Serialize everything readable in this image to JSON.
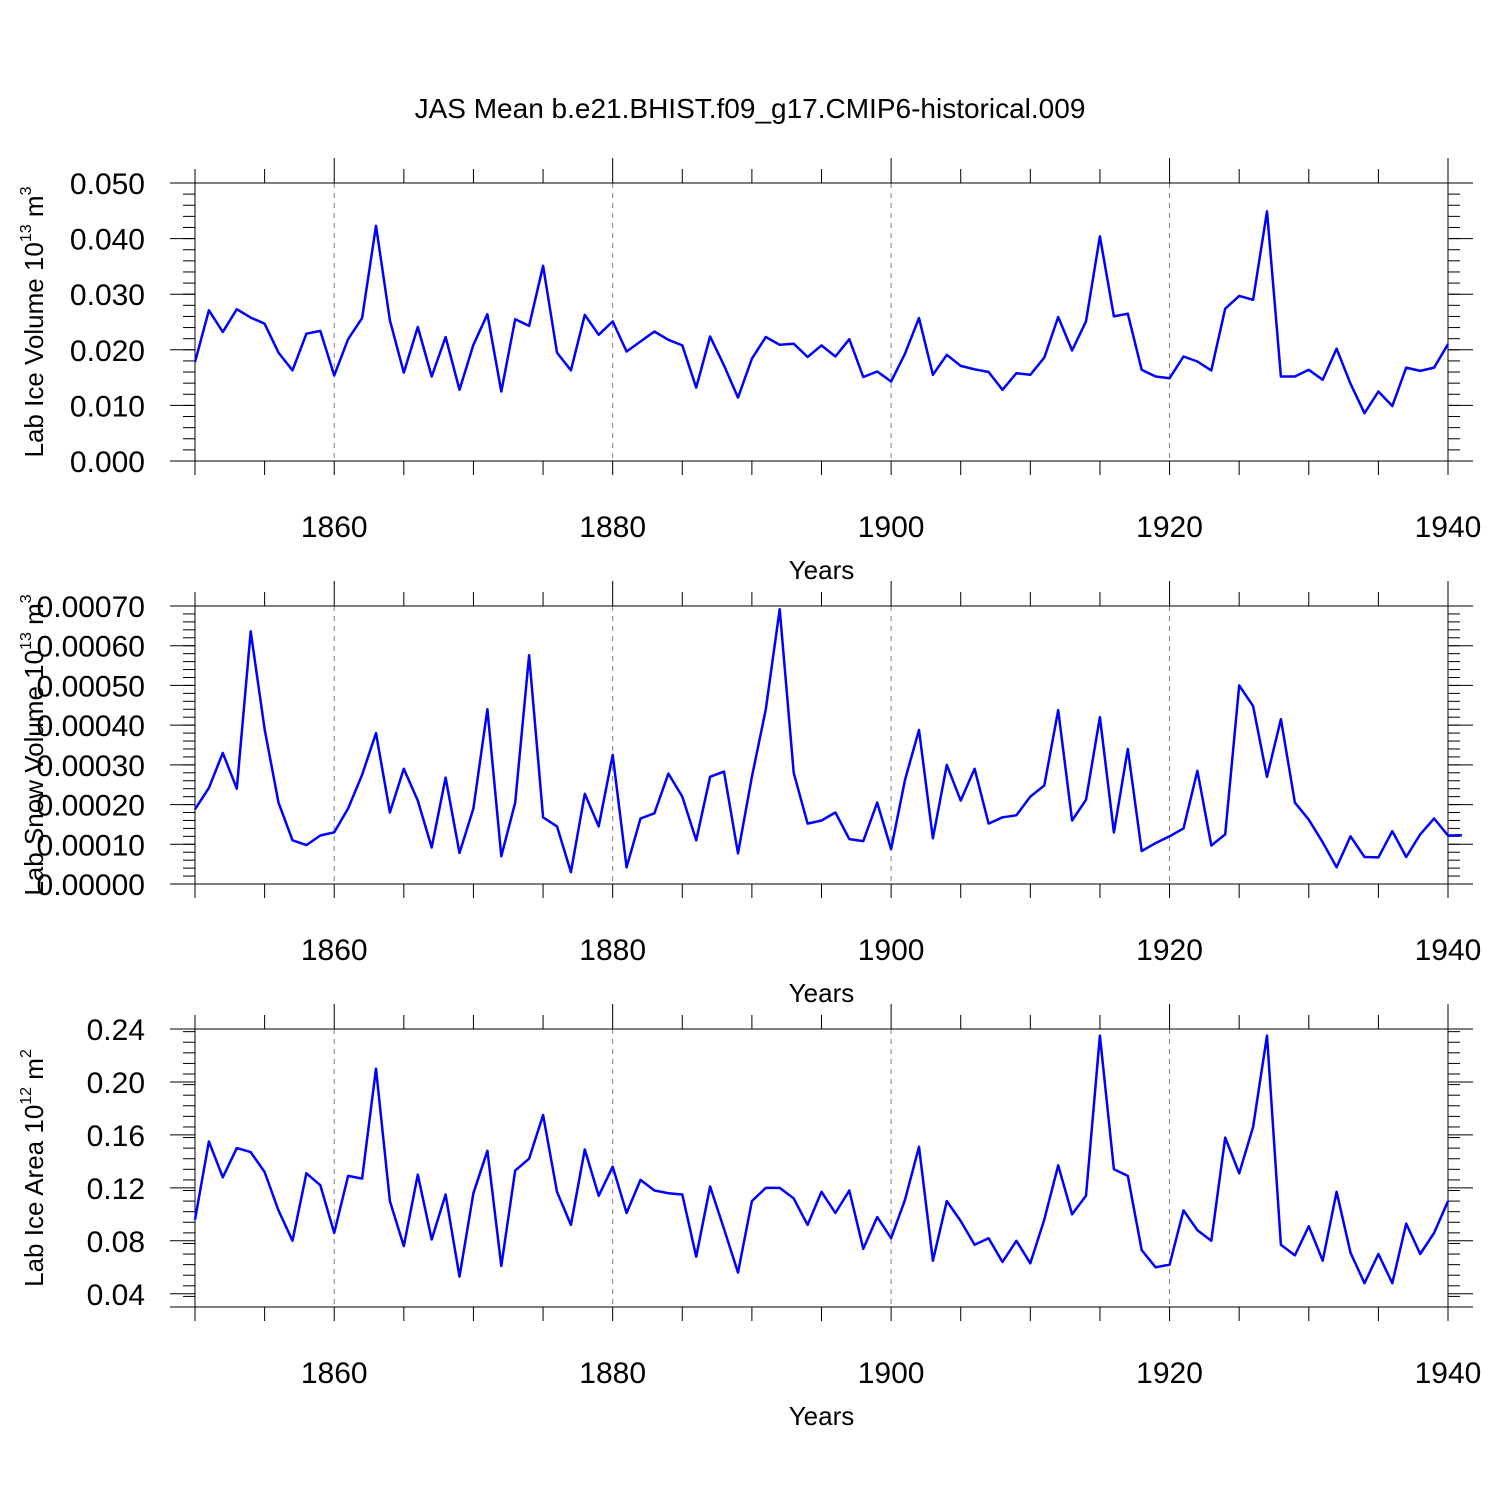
{
  "title": "JAS Mean b.e21.BHIST.f09_g17.CMIP6-historical.009",
  "colors": {
    "series": "#0000ff",
    "axis": "#000000",
    "grid": "#808080"
  },
  "chart_data": [
    {
      "type": "line",
      "ylabel_parts": [
        "Lab Ice Volume 10",
        "13",
        " m",
        "3"
      ],
      "xlabel": "Years",
      "xlim": [
        1850,
        1940
      ],
      "ylim": [
        0.0,
        0.05
      ],
      "x_major_ticks": [
        1860,
        1880,
        1900,
        1920,
        1940
      ],
      "x_grid": [
        1860,
        1880,
        1900,
        1920
      ],
      "y_ticks": [
        0.0,
        0.01,
        0.02,
        0.03,
        0.04,
        0.05
      ],
      "y_tick_labels": [
        "0.000",
        "0.010",
        "0.020",
        "0.030",
        "0.040",
        "0.050"
      ],
      "x_start": 1850,
      "values": [
        0.0178,
        0.0271,
        0.0232,
        0.0273,
        0.0258,
        0.0247,
        0.0195,
        0.0163,
        0.0229,
        0.0234,
        0.0154,
        0.0219,
        0.0257,
        0.0423,
        0.0253,
        0.0159,
        0.0241,
        0.0152,
        0.0223,
        0.0128,
        0.0209,
        0.0264,
        0.0125,
        0.0255,
        0.0243,
        0.0351,
        0.0195,
        0.0163,
        0.0263,
        0.0227,
        0.0251,
        0.0197,
        0.0215,
        0.0233,
        0.0218,
        0.0208,
        0.0132,
        0.0224,
        0.0172,
        0.0114,
        0.0184,
        0.0223,
        0.0209,
        0.0211,
        0.0187,
        0.0208,
        0.0188,
        0.0219,
        0.0151,
        0.0161,
        0.0143,
        0.0193,
        0.0257,
        0.0155,
        0.0191,
        0.0171,
        0.0165,
        0.016,
        0.0128,
        0.0158,
        0.0155,
        0.0186,
        0.0259,
        0.0199,
        0.0251,
        0.0404,
        0.026,
        0.0265,
        0.0164,
        0.0152,
        0.0149,
        0.0188,
        0.0179,
        0.0163,
        0.0274,
        0.0297,
        0.029,
        0.0449,
        0.0152,
        0.0152,
        0.0164,
        0.0146,
        0.0202,
        0.0139,
        0.0086,
        0.0125,
        0.0099,
        0.0168,
        0.0162,
        0.0168,
        0.021
      ]
    },
    {
      "type": "line",
      "ylabel_parts": [
        "Lab Snow Volume 10",
        "13",
        " m",
        "3"
      ],
      "xlabel": "Years",
      "xlim": [
        1850,
        1940
      ],
      "ylim": [
        0.0,
        0.0007
      ],
      "x_major_ticks": [
        1860,
        1880,
        1900,
        1920,
        1940
      ],
      "x_grid": [
        1860,
        1880,
        1900,
        1920
      ],
      "y_ticks": [
        0.0,
        0.0001,
        0.0002,
        0.0003,
        0.0004,
        0.0005,
        0.0006,
        0.0007
      ],
      "y_tick_labels": [
        "0.00000",
        "0.00010",
        "0.00020",
        "0.00030",
        "0.00040",
        "0.00050",
        "0.00060",
        "0.00070"
      ],
      "x_start": 1850,
      "values": [
        0.000188,
        0.000242,
        0.00033,
        0.00024,
        0.000636,
        0.00039,
        0.000205,
        0.00011,
        9.8e-05,
        0.000122,
        0.00013,
        0.00019,
        0.000275,
        0.00038,
        0.00018,
        0.00029,
        0.00021,
        9.2e-05,
        0.000268,
        7.8e-05,
        0.00019,
        0.00044,
        7e-05,
        0.000205,
        0.000576,
        0.000168,
        0.000145,
        3e-05,
        0.000227,
        0.000145,
        0.000325,
        4.2e-05,
        0.000165,
        0.000178,
        0.000278,
        0.00022,
        0.00011,
        0.00027,
        0.000283,
        7.7e-05,
        0.00027,
        0.00044,
        0.000692,
        0.00028,
        0.000152,
        0.00016,
        0.00018,
        0.000113,
        0.000108,
        0.000205,
        8.8e-05,
        0.000262,
        0.000388,
        0.000115,
        0.0003,
        0.00021,
        0.00029,
        0.000152,
        0.000168,
        0.000173,
        0.00022,
        0.000248,
        0.000438,
        0.00016,
        0.000212,
        0.00042,
        0.00013,
        0.00034,
        8.3e-05,
        0.000103,
        0.00012,
        0.00014,
        0.000285,
        9.7e-05,
        0.000125,
        0.0005,
        0.000448,
        0.00027,
        0.000415,
        0.000205,
        0.000162,
        0.000105,
        4.2e-05,
        0.00012,
        6.8e-05,
        6.7e-05,
        0.000133,
        6.8e-05,
        0.000125,
        0.000165,
        0.000122,
        0.000123
      ]
    },
    {
      "type": "line",
      "ylabel_parts": [
        "Lab Ice Area 10",
        "12",
        " m",
        "2"
      ],
      "xlabel": "Years",
      "xlim": [
        1850,
        1940
      ],
      "ylim": [
        0.03,
        0.24
      ],
      "x_major_ticks": [
        1860,
        1880,
        1900,
        1920,
        1940
      ],
      "x_grid": [
        1860,
        1880,
        1900,
        1920
      ],
      "y_ticks": [
        0.04,
        0.08,
        0.12,
        0.16,
        0.2,
        0.24
      ],
      "y_tick_labels": [
        "0.04",
        "0.08",
        "0.12",
        "0.16",
        "0.20",
        "0.24"
      ],
      "x_start": 1850,
      "values": [
        0.096,
        0.155,
        0.128,
        0.15,
        0.147,
        0.132,
        0.103,
        0.08,
        0.131,
        0.122,
        0.086,
        0.129,
        0.127,
        0.21,
        0.11,
        0.076,
        0.13,
        0.081,
        0.115,
        0.053,
        0.116,
        0.148,
        0.061,
        0.133,
        0.142,
        0.175,
        0.117,
        0.092,
        0.149,
        0.114,
        0.136,
        0.101,
        0.126,
        0.118,
        0.116,
        0.115,
        0.068,
        0.121,
        0.089,
        0.056,
        0.11,
        0.12,
        0.12,
        0.112,
        0.092,
        0.117,
        0.101,
        0.118,
        0.074,
        0.098,
        0.082,
        0.111,
        0.151,
        0.065,
        0.11,
        0.095,
        0.077,
        0.082,
        0.064,
        0.08,
        0.063,
        0.096,
        0.137,
        0.1,
        0.114,
        0.235,
        0.134,
        0.129,
        0.073,
        0.06,
        0.062,
        0.103,
        0.088,
        0.08,
        0.158,
        0.131,
        0.166,
        0.235,
        0.077,
        0.069,
        0.091,
        0.065,
        0.117,
        0.071,
        0.048,
        0.07,
        0.048,
        0.093,
        0.07,
        0.086,
        0.11
      ]
    }
  ]
}
